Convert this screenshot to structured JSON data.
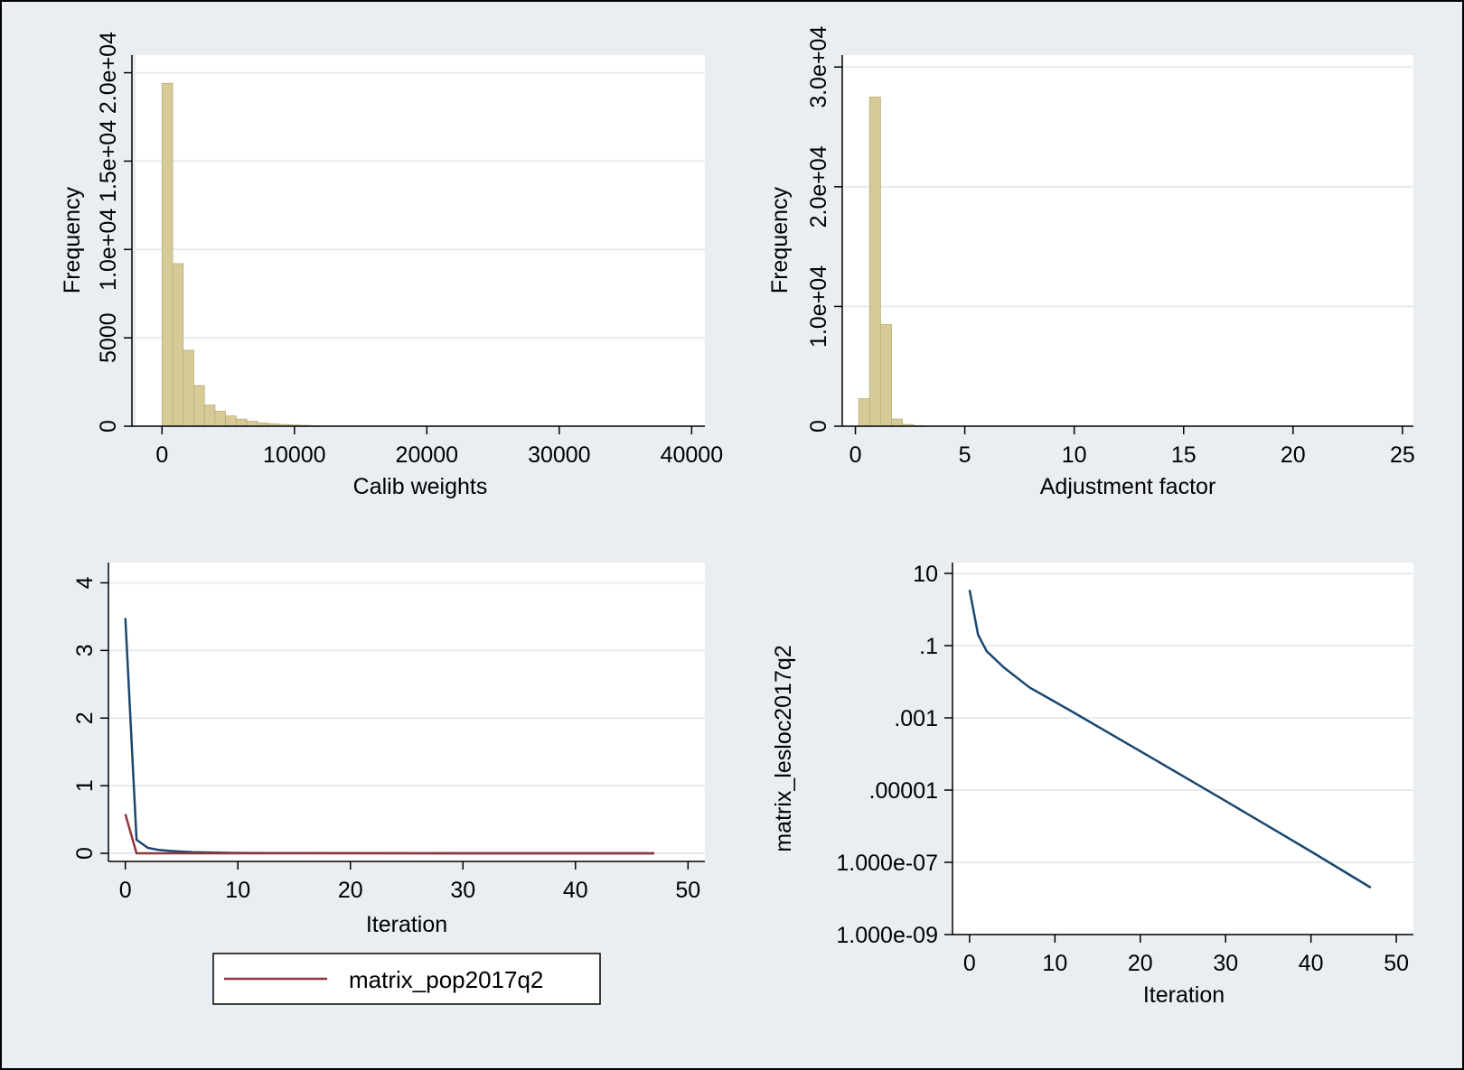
{
  "colors": {
    "outer_background": "#e8eef2",
    "plot_background": "#ffffff",
    "gridline": "#e4ecf0",
    "bar_fill": "#d6cb96",
    "bar_stroke": "#b8ad78",
    "navy_line": "#1a476f",
    "maroon_line": "#90353b",
    "axis": "#000000"
  },
  "chart_data": [
    {
      "id": "calib-hist",
      "type": "bar",
      "subtype": "histogram",
      "xlabel": "Calib weights",
      "ylabel": "Frequency",
      "xlim": [
        -2000,
        41000
      ],
      "ylim": [
        0,
        21000
      ],
      "xticks": [
        0,
        10000,
        20000,
        30000,
        40000
      ],
      "xtick_labels": [
        "0",
        "10000",
        "20000",
        "30000",
        "40000"
      ],
      "yticks": [
        0,
        5000,
        10000,
        15000,
        20000
      ],
      "ytick_labels": [
        "0",
        "5000",
        "1.0e+04",
        "1.5e+04",
        "2.0e+04"
      ],
      "grid": true,
      "bin_start": 0,
      "bin_width": 800,
      "values": [
        19400,
        9200,
        4300,
        2300,
        1200,
        850,
        580,
        400,
        280,
        190,
        140,
        100,
        70,
        50,
        30
      ]
    },
    {
      "id": "adjust-hist",
      "type": "bar",
      "subtype": "histogram",
      "xlabel": "Adjustment factor",
      "ylabel": "Frequency",
      "xlim": [
        -0.6,
        25.5
      ],
      "ylim": [
        0,
        31000
      ],
      "xticks": [
        0,
        5,
        10,
        15,
        20,
        25
      ],
      "xtick_labels": [
        "0",
        "5",
        "10",
        "15",
        "20",
        "25"
      ],
      "yticks": [
        0,
        10000,
        20000,
        30000
      ],
      "ytick_labels": [
        "0",
        "1.0e+04",
        "2.0e+04",
        "3.0e+04"
      ],
      "grid": true,
      "bin_start": 0.15,
      "bin_width": 0.5,
      "values": [
        2300,
        27500,
        8500,
        600,
        150,
        50
      ]
    },
    {
      "id": "convergence-linear",
      "type": "line",
      "xlabel": "Iteration",
      "ylabel": "",
      "xlim": [
        -1.5,
        51.5
      ],
      "ylim": [
        -0.12,
        4.3
      ],
      "xticks": [
        0,
        10,
        20,
        30,
        40,
        50
      ],
      "xtick_labels": [
        "0",
        "10",
        "20",
        "30",
        "40",
        "50"
      ],
      "yticks": [
        0,
        1,
        2,
        3,
        4
      ],
      "ytick_labels": [
        "0",
        "1",
        "2",
        "3",
        "4"
      ],
      "grid": true,
      "legend": {
        "position": "bottom",
        "entries": [
          "matrix_pop2017q2"
        ]
      },
      "series": [
        {
          "color": "navy",
          "x": [
            0,
            1,
            2,
            3,
            4,
            5,
            6,
            8,
            10,
            13,
            20,
            30,
            40,
            47
          ],
          "y": [
            3.48,
            0.2,
            0.08,
            0.05,
            0.035,
            0.025,
            0.018,
            0.01,
            0.006,
            0.003,
            0.001,
            0.0004,
            0.0002,
            0.0001
          ]
        },
        {
          "name": "matrix_pop2017q2",
          "color": "maroon",
          "x": [
            0,
            1,
            2,
            5,
            10,
            20,
            30,
            40,
            47
          ],
          "y": [
            0.58,
            0.0,
            0.0,
            0.0,
            0.0,
            0.002,
            0.0,
            0.0,
            0.0
          ]
        }
      ]
    },
    {
      "id": "convergence-log",
      "type": "line",
      "xlabel": "Iteration",
      "ylabel": "matrix_lesloc2017q2",
      "yscale": "log",
      "xlim": [
        -2,
        52
      ],
      "ylim": [
        1e-09,
        20
      ],
      "xticks": [
        0,
        10,
        20,
        30,
        40,
        50
      ],
      "xtick_labels": [
        "0",
        "10",
        "20",
        "30",
        "40",
        "50"
      ],
      "yticks": [
        10,
        0.1,
        0.001,
        1e-05,
        1e-07,
        1e-09
      ],
      "ytick_labels": [
        "10",
        ".1",
        ".001",
        ".00001",
        "1.000e-07",
        "1.000e-09"
      ],
      "grid": true,
      "series": [
        {
          "color": "navy",
          "x": [
            0,
            1,
            2,
            4,
            7,
            12,
            20,
            30,
            40,
            47
          ],
          "y": [
            3.5,
            0.2,
            0.07,
            0.025,
            0.007,
            0.0015,
            0.00012,
            5e-06,
            2e-07,
            2e-08
          ]
        }
      ]
    }
  ]
}
